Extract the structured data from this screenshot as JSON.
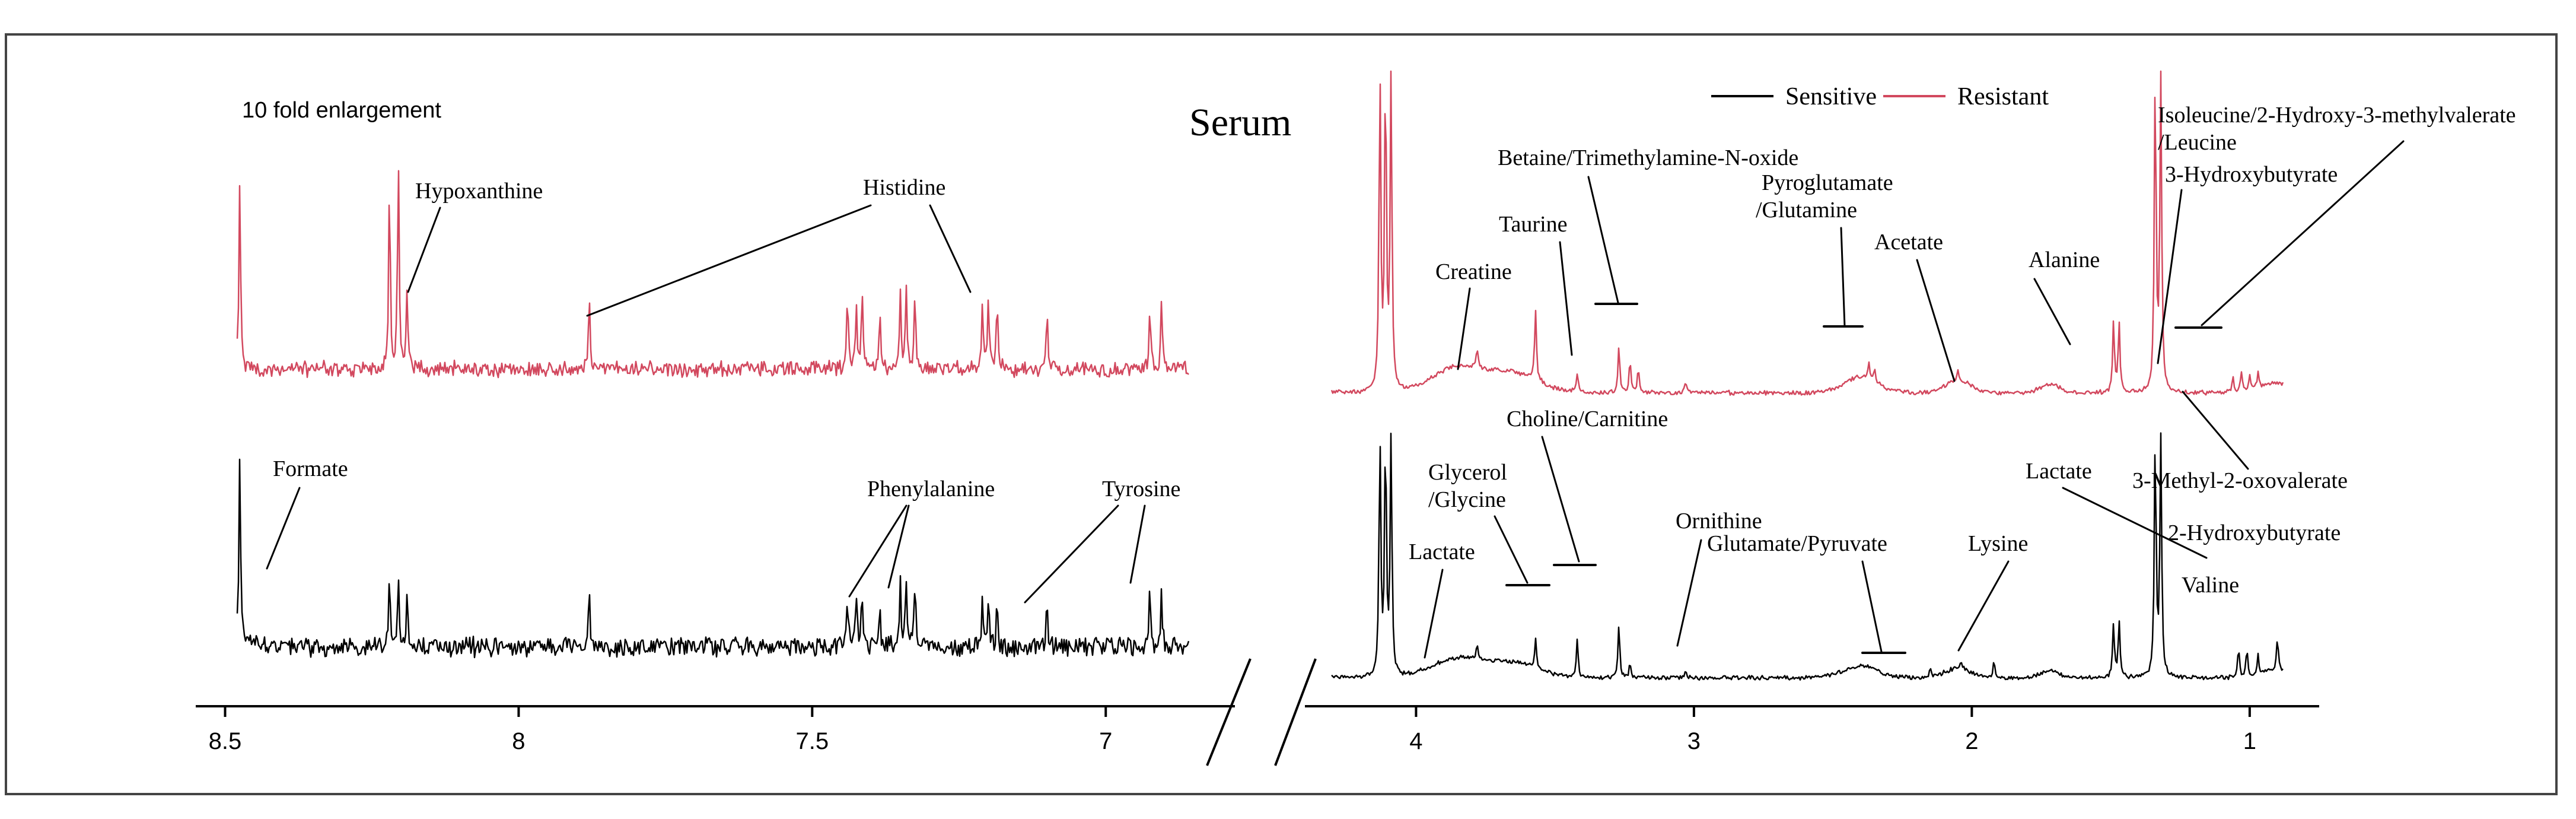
{
  "chart_data": {
    "type": "line",
    "title": "Serum",
    "subtitle": "",
    "enlargement_note": "10 fold enlargement",
    "xlabel": "",
    "ylabel": "",
    "x_reversed": true,
    "grid": false,
    "legend_position": "top-right",
    "colors": {
      "sensitive": "#000000",
      "resistant": "#d2485e"
    },
    "series": [
      {
        "name": "Sensitive",
        "key": "sensitive"
      },
      {
        "name": "Resistant",
        "key": "resistant"
      }
    ],
    "panels": [
      {
        "id": "aromatic",
        "xlim": [
          8.55,
          6.78
        ],
        "ticks": [
          "8.5",
          "8",
          "7.5",
          "7"
        ],
        "tick_values": [
          8.5,
          8.0,
          7.5,
          7.0
        ],
        "peaks": {
          "resistant": [
            [
              8.475,
              0.82
            ],
            [
              8.22,
              0.82
            ],
            [
              8.205,
              0.92
            ],
            [
              8.19,
              0.34
            ],
            [
              7.88,
              0.34
            ],
            [
              7.44,
              0.34
            ],
            [
              7.425,
              0.28
            ],
            [
              7.415,
              0.36
            ],
            [
              7.385,
              0.26
            ],
            [
              7.35,
              0.37
            ],
            [
              7.34,
              0.4
            ],
            [
              7.325,
              0.36
            ],
            [
              7.21,
              0.3
            ],
            [
              7.2,
              0.33
            ],
            [
              7.185,
              0.28
            ],
            [
              7.1,
              0.28
            ],
            [
              6.925,
              0.28
            ],
            [
              6.905,
              0.3
            ]
          ],
          "sensitive": [
            [
              8.475,
              1.0
            ],
            [
              8.22,
              0.36
            ],
            [
              8.205,
              0.33
            ],
            [
              8.19,
              0.28
            ],
            [
              7.88,
              0.34
            ],
            [
              7.44,
              0.26
            ],
            [
              7.425,
              0.24
            ],
            [
              7.415,
              0.28
            ],
            [
              7.385,
              0.22
            ],
            [
              7.35,
              0.33
            ],
            [
              7.34,
              0.34
            ],
            [
              7.325,
              0.3
            ],
            [
              7.21,
              0.24
            ],
            [
              7.2,
              0.26
            ],
            [
              7.185,
              0.22
            ],
            [
              7.1,
              0.24
            ],
            [
              6.925,
              0.26
            ],
            [
              6.905,
              0.25
            ]
          ]
        },
        "annotations": [
          {
            "text": "Hypoxanthine",
            "series": "resistant",
            "x": 8.19
          },
          {
            "text": "Histidine",
            "series": "resistant",
            "x": 7.88
          },
          {
            "text": "Formate",
            "series": "sensitive",
            "x": 8.465
          },
          {
            "text": "Phenylalanine",
            "series": "sensitive",
            "x": 7.4
          },
          {
            "text": "Tyrosine",
            "series": "sensitive",
            "x": 7.1
          }
        ]
      },
      {
        "id": "aliphatic",
        "xlim": [
          4.4,
          0.75
        ],
        "ticks": [
          "4",
          "3",
          "2",
          "1"
        ],
        "tick_values": [
          4,
          3,
          2,
          1
        ],
        "peaks": {
          "resistant": [
            [
              4.13,
              1.0
            ],
            [
              4.11,
              1.0
            ],
            [
              4.09,
              1.0
            ],
            [
              3.78,
              0.06
            ],
            [
              3.57,
              0.22
            ],
            [
              3.42,
              0.06
            ],
            [
              3.27,
              0.15
            ],
            [
              3.23,
              0.1
            ],
            [
              3.2,
              0.08
            ],
            [
              3.03,
              0.04
            ],
            [
              2.37,
              0.05
            ],
            [
              2.35,
              0.04
            ],
            [
              2.05,
              0.03
            ],
            [
              1.49,
              0.22
            ],
            [
              1.47,
              0.22
            ],
            [
              1.34,
              1.0
            ],
            [
              1.32,
              1.0
            ],
            [
              1.06,
              0.05
            ],
            [
              1.03,
              0.06
            ],
            [
              1.0,
              0.05
            ],
            [
              0.97,
              0.05
            ]
          ],
          "sensitive": [
            [
              4.13,
              1.0
            ],
            [
              4.11,
              1.0
            ],
            [
              4.09,
              1.0
            ],
            [
              3.78,
              0.06
            ],
            [
              3.57,
              0.13
            ],
            [
              3.42,
              0.16
            ],
            [
              3.27,
              0.22
            ],
            [
              3.23,
              0.06
            ],
            [
              3.03,
              0.03
            ],
            [
              2.15,
              0.04
            ],
            [
              2.04,
              0.03
            ],
            [
              1.92,
              0.07
            ],
            [
              1.49,
              0.23
            ],
            [
              1.47,
              0.24
            ],
            [
              1.34,
              1.0
            ],
            [
              1.32,
              1.0
            ],
            [
              1.04,
              0.12
            ],
            [
              1.01,
              0.11
            ],
            [
              0.97,
              0.08
            ],
            [
              0.9,
              0.14
            ]
          ]
        },
        "annotations": [
          {
            "text": "Creatine",
            "series": "resistant",
            "x": 3.92
          },
          {
            "text": "Taurine",
            "series": "resistant",
            "x": 3.42
          },
          {
            "text": "Betaine/Trimethylamine-N-oxide",
            "series": "resistant",
            "x": 3.25
          },
          {
            "text": "Pyroglutamate",
            "series": "resistant",
            "x": 2.4
          },
          {
            "text": "/Glutamine",
            "series": "resistant",
            "x": 2.4
          },
          {
            "text": "Acetate",
            "series": "resistant",
            "x": 1.92
          },
          {
            "text": "Alanine",
            "series": "resistant",
            "x": 1.48
          },
          {
            "text": "Isoleucine/2-Hydroxy-3-methylvalerate",
            "series": "resistant",
            "x": 1.0
          },
          {
            "text": "/Leucine",
            "series": "resistant",
            "x": 1.0
          },
          {
            "text": "3-Hydroxybutyrate",
            "series": "resistant",
            "x": 1.2
          },
          {
            "text": "3-Methyl-2-oxovalerate",
            "series": "resistant",
            "x": 1.08
          },
          {
            "text": "Choline/Carnitine",
            "series": "sensitive",
            "x": 3.4
          },
          {
            "text": "Glycerol",
            "series": "sensitive",
            "x": 3.62
          },
          {
            "text": "/Glycine",
            "series": "sensitive",
            "x": 3.62
          },
          {
            "text": "Lactate",
            "series": "sensitive",
            "x": 4.0
          },
          {
            "text": "Ornithine",
            "series": "sensitive",
            "x": 3.03
          },
          {
            "text": "Glutamate/Pyruvate",
            "series": "sensitive",
            "x": 2.12
          },
          {
            "text": "Lysine",
            "series": "sensitive",
            "x": 1.92
          },
          {
            "text": "Lactate",
            "series": "sensitive",
            "x": 1.36
          },
          {
            "text": "2-Hydroxybutyrate",
            "series": "sensitive",
            "x": 0.9
          },
          {
            "text": "Valine",
            "series": "sensitive",
            "x": 1.04
          }
        ]
      }
    ]
  }
}
